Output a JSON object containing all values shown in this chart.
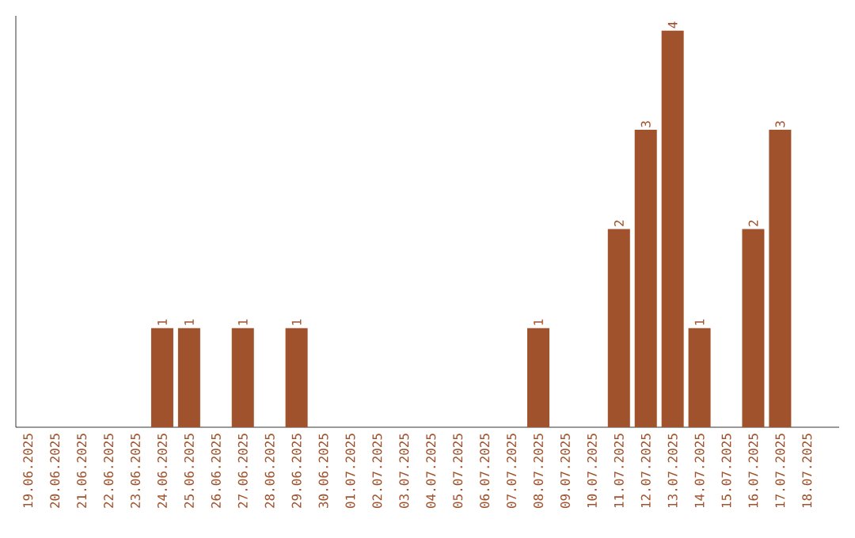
{
  "chart_data": {
    "type": "bar",
    "categories": [
      "19.06.2025",
      "20.06.2025",
      "21.06.2025",
      "22.06.2025",
      "23.06.2025",
      "24.06.2025",
      "25.06.2025",
      "26.06.2025",
      "27.06.2025",
      "28.06.2025",
      "29.06.2025",
      "30.06.2025",
      "01.07.2025",
      "02.07.2025",
      "03.07.2025",
      "04.07.2025",
      "05.07.2025",
      "06.07.2025",
      "07.07.2025",
      "08.07.2025",
      "09.07.2025",
      "10.07.2025",
      "11.07.2025",
      "12.07.2025",
      "13.07.2025",
      "14.07.2025",
      "15.07.2025",
      "16.07.2025",
      "17.07.2025",
      "18.07.2025"
    ],
    "values": [
      0,
      0,
      0,
      0,
      0,
      1,
      1,
      0,
      1,
      0,
      1,
      0,
      0,
      0,
      0,
      0,
      0,
      0,
      0,
      1,
      0,
      0,
      2,
      3,
      4,
      1,
      0,
      2,
      3,
      0
    ],
    "value_labels": [
      null,
      null,
      null,
      null,
      null,
      "1",
      "1",
      null,
      "1",
      null,
      "1",
      null,
      null,
      null,
      null,
      null,
      null,
      null,
      null,
      "1",
      null,
      null,
      "2",
      "3",
      "4",
      "1",
      null,
      "2",
      "3",
      null
    ],
    "color": "#a0522d",
    "ylim": [
      0,
      4.15
    ],
    "tick_labels": "x"
  }
}
